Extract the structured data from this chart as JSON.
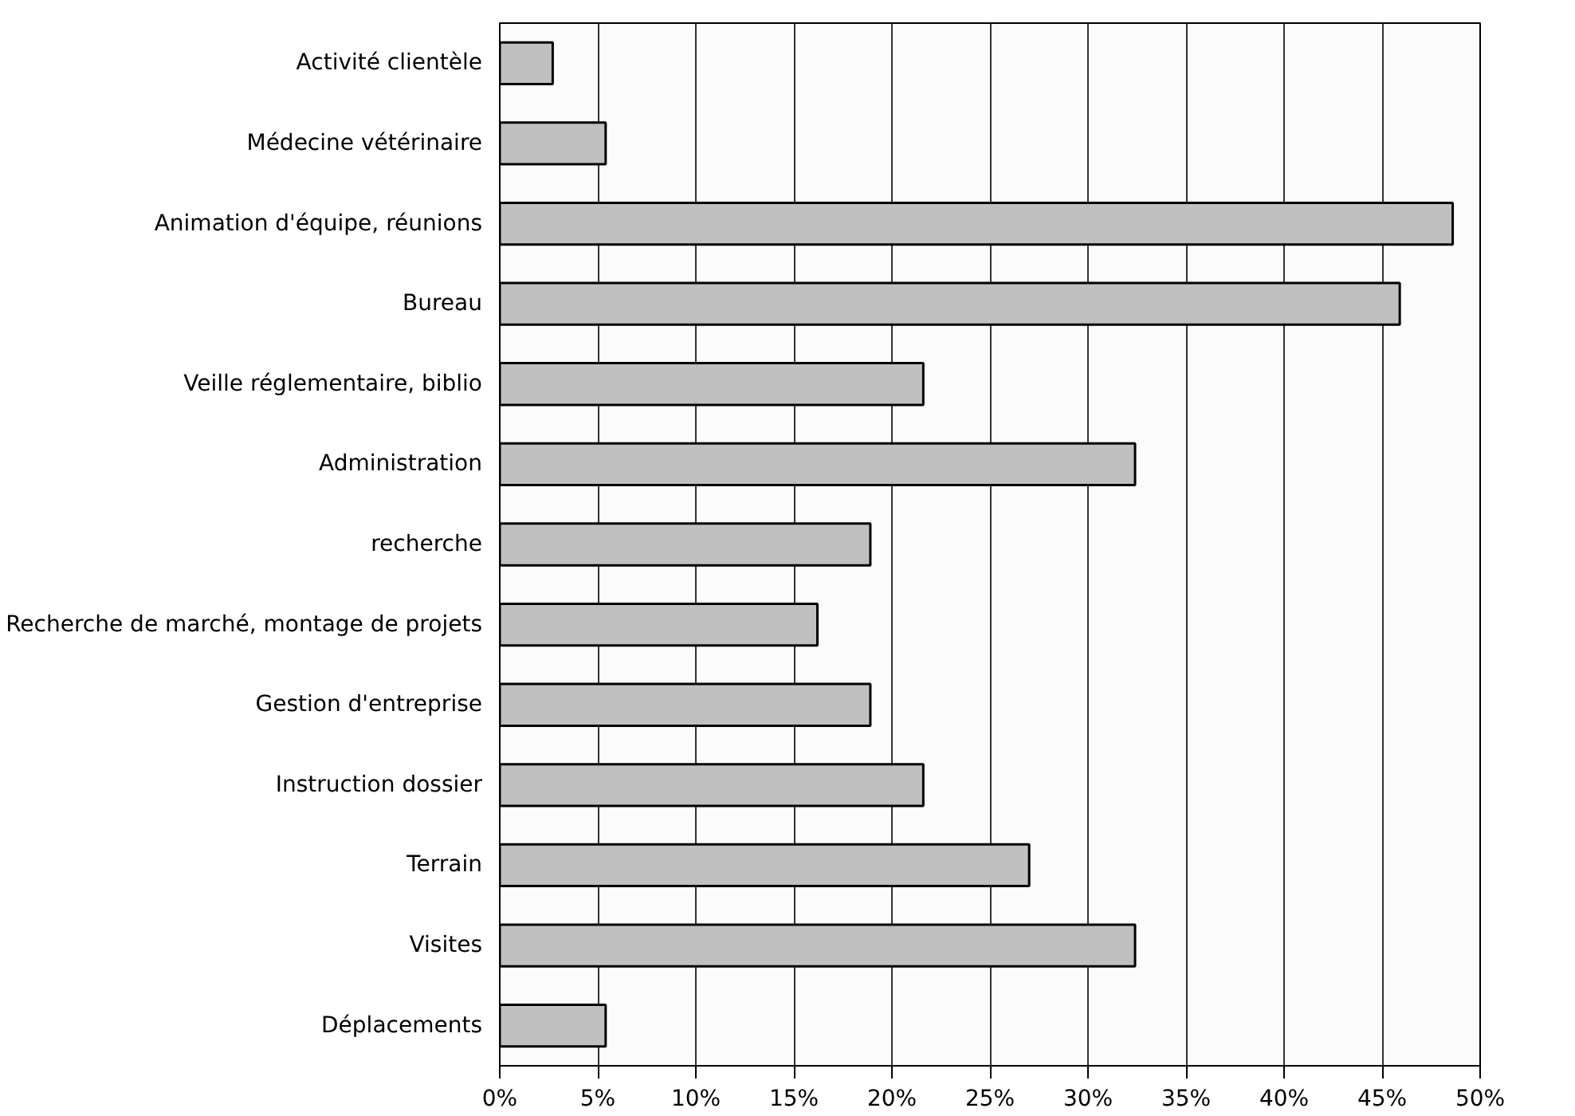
{
  "chart_data": {
    "type": "bar",
    "orientation": "horizontal",
    "categories": [
      "Activité clientèle",
      "Médecine vétérinaire",
      "Animation d'équipe, réunions",
      "Bureau",
      "Veille réglementaire, biblio",
      "Administration",
      "recherche",
      "Recherche de marché, montage de projets",
      "Gestion d'entreprise",
      "Instruction dossier",
      "Terrain",
      "Visites",
      "Déplacements"
    ],
    "values": [
      2.7,
      5.4,
      48.6,
      45.9,
      21.6,
      32.4,
      18.9,
      16.2,
      18.9,
      21.6,
      27.0,
      32.4,
      5.4
    ],
    "color": "#c0c0c0",
    "xlim": [
      0,
      50
    ],
    "xticks": [
      {
        "value": 0,
        "label": "0%"
      },
      {
        "value": 5,
        "label": "5%"
      },
      {
        "value": 10,
        "label": "10%"
      },
      {
        "value": 15,
        "label": "15%"
      },
      {
        "value": 20,
        "label": "20%"
      },
      {
        "value": 25,
        "label": "25%"
      },
      {
        "value": 30,
        "label": "30%"
      },
      {
        "value": 35,
        "label": "35%"
      },
      {
        "value": 40,
        "label": "40%"
      },
      {
        "value": 45,
        "label": "45%"
      },
      {
        "value": 50,
        "label": "50%"
      }
    ],
    "grid": "x"
  }
}
